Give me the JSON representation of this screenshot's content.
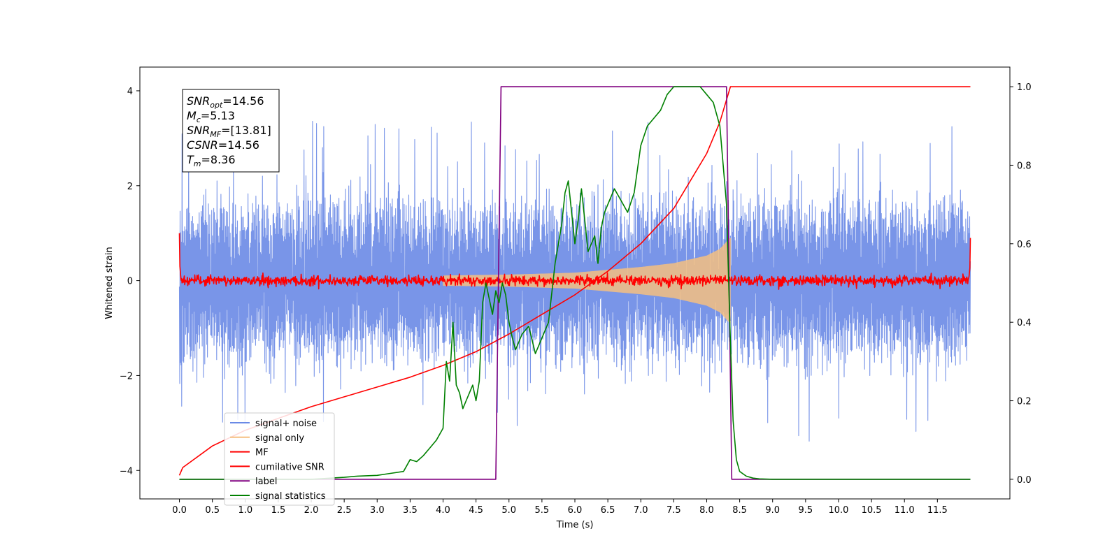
{
  "chart_data": {
    "type": "line",
    "xlabel": "Time (s)",
    "ylabel": "Whitened strain",
    "xlim": [
      -0.6,
      12.6
    ],
    "ylim": [
      -4.6,
      4.5
    ],
    "y2lim": [
      -0.05,
      1.05
    ],
    "x_ticks": [
      0.0,
      0.5,
      1.0,
      1.5,
      2.0,
      2.5,
      3.0,
      3.5,
      4.0,
      4.5,
      5.0,
      5.5,
      6.0,
      6.5,
      7.0,
      7.5,
      8.0,
      8.5,
      9.0,
      9.5,
      10.0,
      10.5,
      11.0,
      11.5
    ],
    "x_tick_labels": [
      "0.0",
      "0.5",
      "1.0",
      "1.5",
      "2.0",
      "2.5",
      "3.0",
      "3.5",
      "4.0",
      "4.5",
      "5.0",
      "5.5",
      "6.0",
      "6.5",
      "7.0",
      "7.5",
      "8.0",
      "8.5",
      "9.0",
      "9.5",
      "10.0",
      "10.5",
      "11.0",
      "11.5"
    ],
    "y_ticks": [
      -4,
      -2,
      0,
      2,
      4
    ],
    "y_tick_labels": [
      "−4",
      "−2",
      "0",
      "2",
      "4"
    ],
    "y2_ticks": [
      0.0,
      0.2,
      0.4,
      0.6,
      0.8,
      1.0
    ],
    "y2_tick_labels": [
      "0.0",
      "0.2",
      "0.4",
      "0.6",
      "0.8",
      "1.0"
    ],
    "grid": false,
    "legend_position": "lower-left",
    "series": [
      {
        "name": "signal+ noise",
        "axis": "left",
        "color": "#6a8ae6",
        "kind": "noise",
        "x_range": [
          0.0,
          12.0
        ],
        "amplitude_band": [
          -1.5,
          1.5
        ],
        "peak_max": 4.0,
        "peak_min": -4.1
      },
      {
        "name": "signal only",
        "axis": "left",
        "color": "#f5bf80",
        "kind": "chirp",
        "x_range": [
          4.0,
          8.36
        ],
        "envelope_x": [
          4.0,
          5.0,
          6.0,
          7.0,
          7.5,
          8.0,
          8.2,
          8.36
        ],
        "envelope_y": [
          0.1,
          0.12,
          0.16,
          0.28,
          0.36,
          0.52,
          0.66,
          0.9
        ]
      },
      {
        "name": "MF",
        "axis": "left",
        "color": "#ff0000",
        "kind": "mf",
        "x_range": [
          0.0,
          12.0
        ],
        "band": 0.12,
        "start_value": 1.0,
        "end_value": 0.9
      },
      {
        "name": "cumilative SNR",
        "axis": "right",
        "color": "#ff0000",
        "x": [
          0.0,
          0.05,
          0.5,
          1.0,
          1.5,
          2.0,
          2.5,
          3.0,
          3.5,
          4.0,
          4.5,
          5.0,
          5.5,
          6.0,
          6.5,
          7.0,
          7.5,
          8.0,
          8.2,
          8.36,
          8.4,
          12.0
        ],
        "y": [
          0.01,
          0.03,
          0.085,
          0.125,
          0.155,
          0.185,
          0.21,
          0.235,
          0.26,
          0.29,
          0.325,
          0.37,
          0.42,
          0.47,
          0.53,
          0.6,
          0.69,
          0.83,
          0.91,
          1.0,
          1.0,
          1.0
        ]
      },
      {
        "name": "label",
        "axis": "right",
        "color": "#800080",
        "x": [
          0.0,
          4.8,
          4.88,
          8.3,
          8.38,
          12.0
        ],
        "y": [
          0.0,
          0.0,
          1.0,
          1.0,
          0.0,
          0.0
        ]
      },
      {
        "name": "signal statistics",
        "axis": "right",
        "color": "#008000",
        "x": [
          0.0,
          0.5,
          1.0,
          1.5,
          2.0,
          2.5,
          2.7,
          3.0,
          3.2,
          3.4,
          3.5,
          3.6,
          3.7,
          3.8,
          3.9,
          4.0,
          4.05,
          4.1,
          4.15,
          4.2,
          4.25,
          4.3,
          4.35,
          4.4,
          4.45,
          4.5,
          4.55,
          4.6,
          4.65,
          4.7,
          4.75,
          4.8,
          4.85,
          4.9,
          4.95,
          5.0,
          5.05,
          5.1,
          5.2,
          5.3,
          5.4,
          5.5,
          5.6,
          5.7,
          5.8,
          5.85,
          5.9,
          5.95,
          6.0,
          6.05,
          6.1,
          6.15,
          6.2,
          6.25,
          6.3,
          6.35,
          6.4,
          6.45,
          6.5,
          6.6,
          6.7,
          6.8,
          6.9,
          7.0,
          7.1,
          7.2,
          7.3,
          7.4,
          7.5,
          7.6,
          7.7,
          7.8,
          7.9,
          8.0,
          8.1,
          8.2,
          8.3,
          8.35,
          8.4,
          8.45,
          8.5,
          8.6,
          8.7,
          8.8,
          9.0,
          10.0,
          11.0,
          12.0
        ],
        "y": [
          0.0,
          0.0,
          0.0,
          0.0,
          0.0,
          0.005,
          0.008,
          0.01,
          0.015,
          0.02,
          0.05,
          0.045,
          0.06,
          0.08,
          0.1,
          0.13,
          0.3,
          0.25,
          0.4,
          0.24,
          0.22,
          0.18,
          0.2,
          0.22,
          0.24,
          0.2,
          0.25,
          0.45,
          0.5,
          0.46,
          0.42,
          0.48,
          0.45,
          0.5,
          0.47,
          0.4,
          0.36,
          0.33,
          0.37,
          0.39,
          0.32,
          0.36,
          0.4,
          0.55,
          0.65,
          0.73,
          0.76,
          0.68,
          0.6,
          0.66,
          0.74,
          0.66,
          0.58,
          0.6,
          0.62,
          0.55,
          0.64,
          0.68,
          0.7,
          0.74,
          0.71,
          0.68,
          0.73,
          0.85,
          0.9,
          0.92,
          0.94,
          0.98,
          1.0,
          1.0,
          1.0,
          1.0,
          1.0,
          0.98,
          0.96,
          0.9,
          0.7,
          0.4,
          0.15,
          0.05,
          0.02,
          0.008,
          0.003,
          0.001,
          0.0,
          0.0,
          0.0,
          0.0
        ]
      }
    ],
    "annotation": {
      "lines": [
        {
          "main": "SNR",
          "sub": "opt",
          "rest": "=14.56"
        },
        {
          "main": "M",
          "sub": "c",
          "rest": "=5.13"
        },
        {
          "main": "SNR",
          "sub": "MF",
          "rest": "=[13.81]"
        },
        {
          "main": "CSNR",
          "sub": "",
          "rest": "=14.56"
        },
        {
          "main": "T",
          "sub": "m",
          "rest": "=8.36"
        }
      ]
    }
  }
}
